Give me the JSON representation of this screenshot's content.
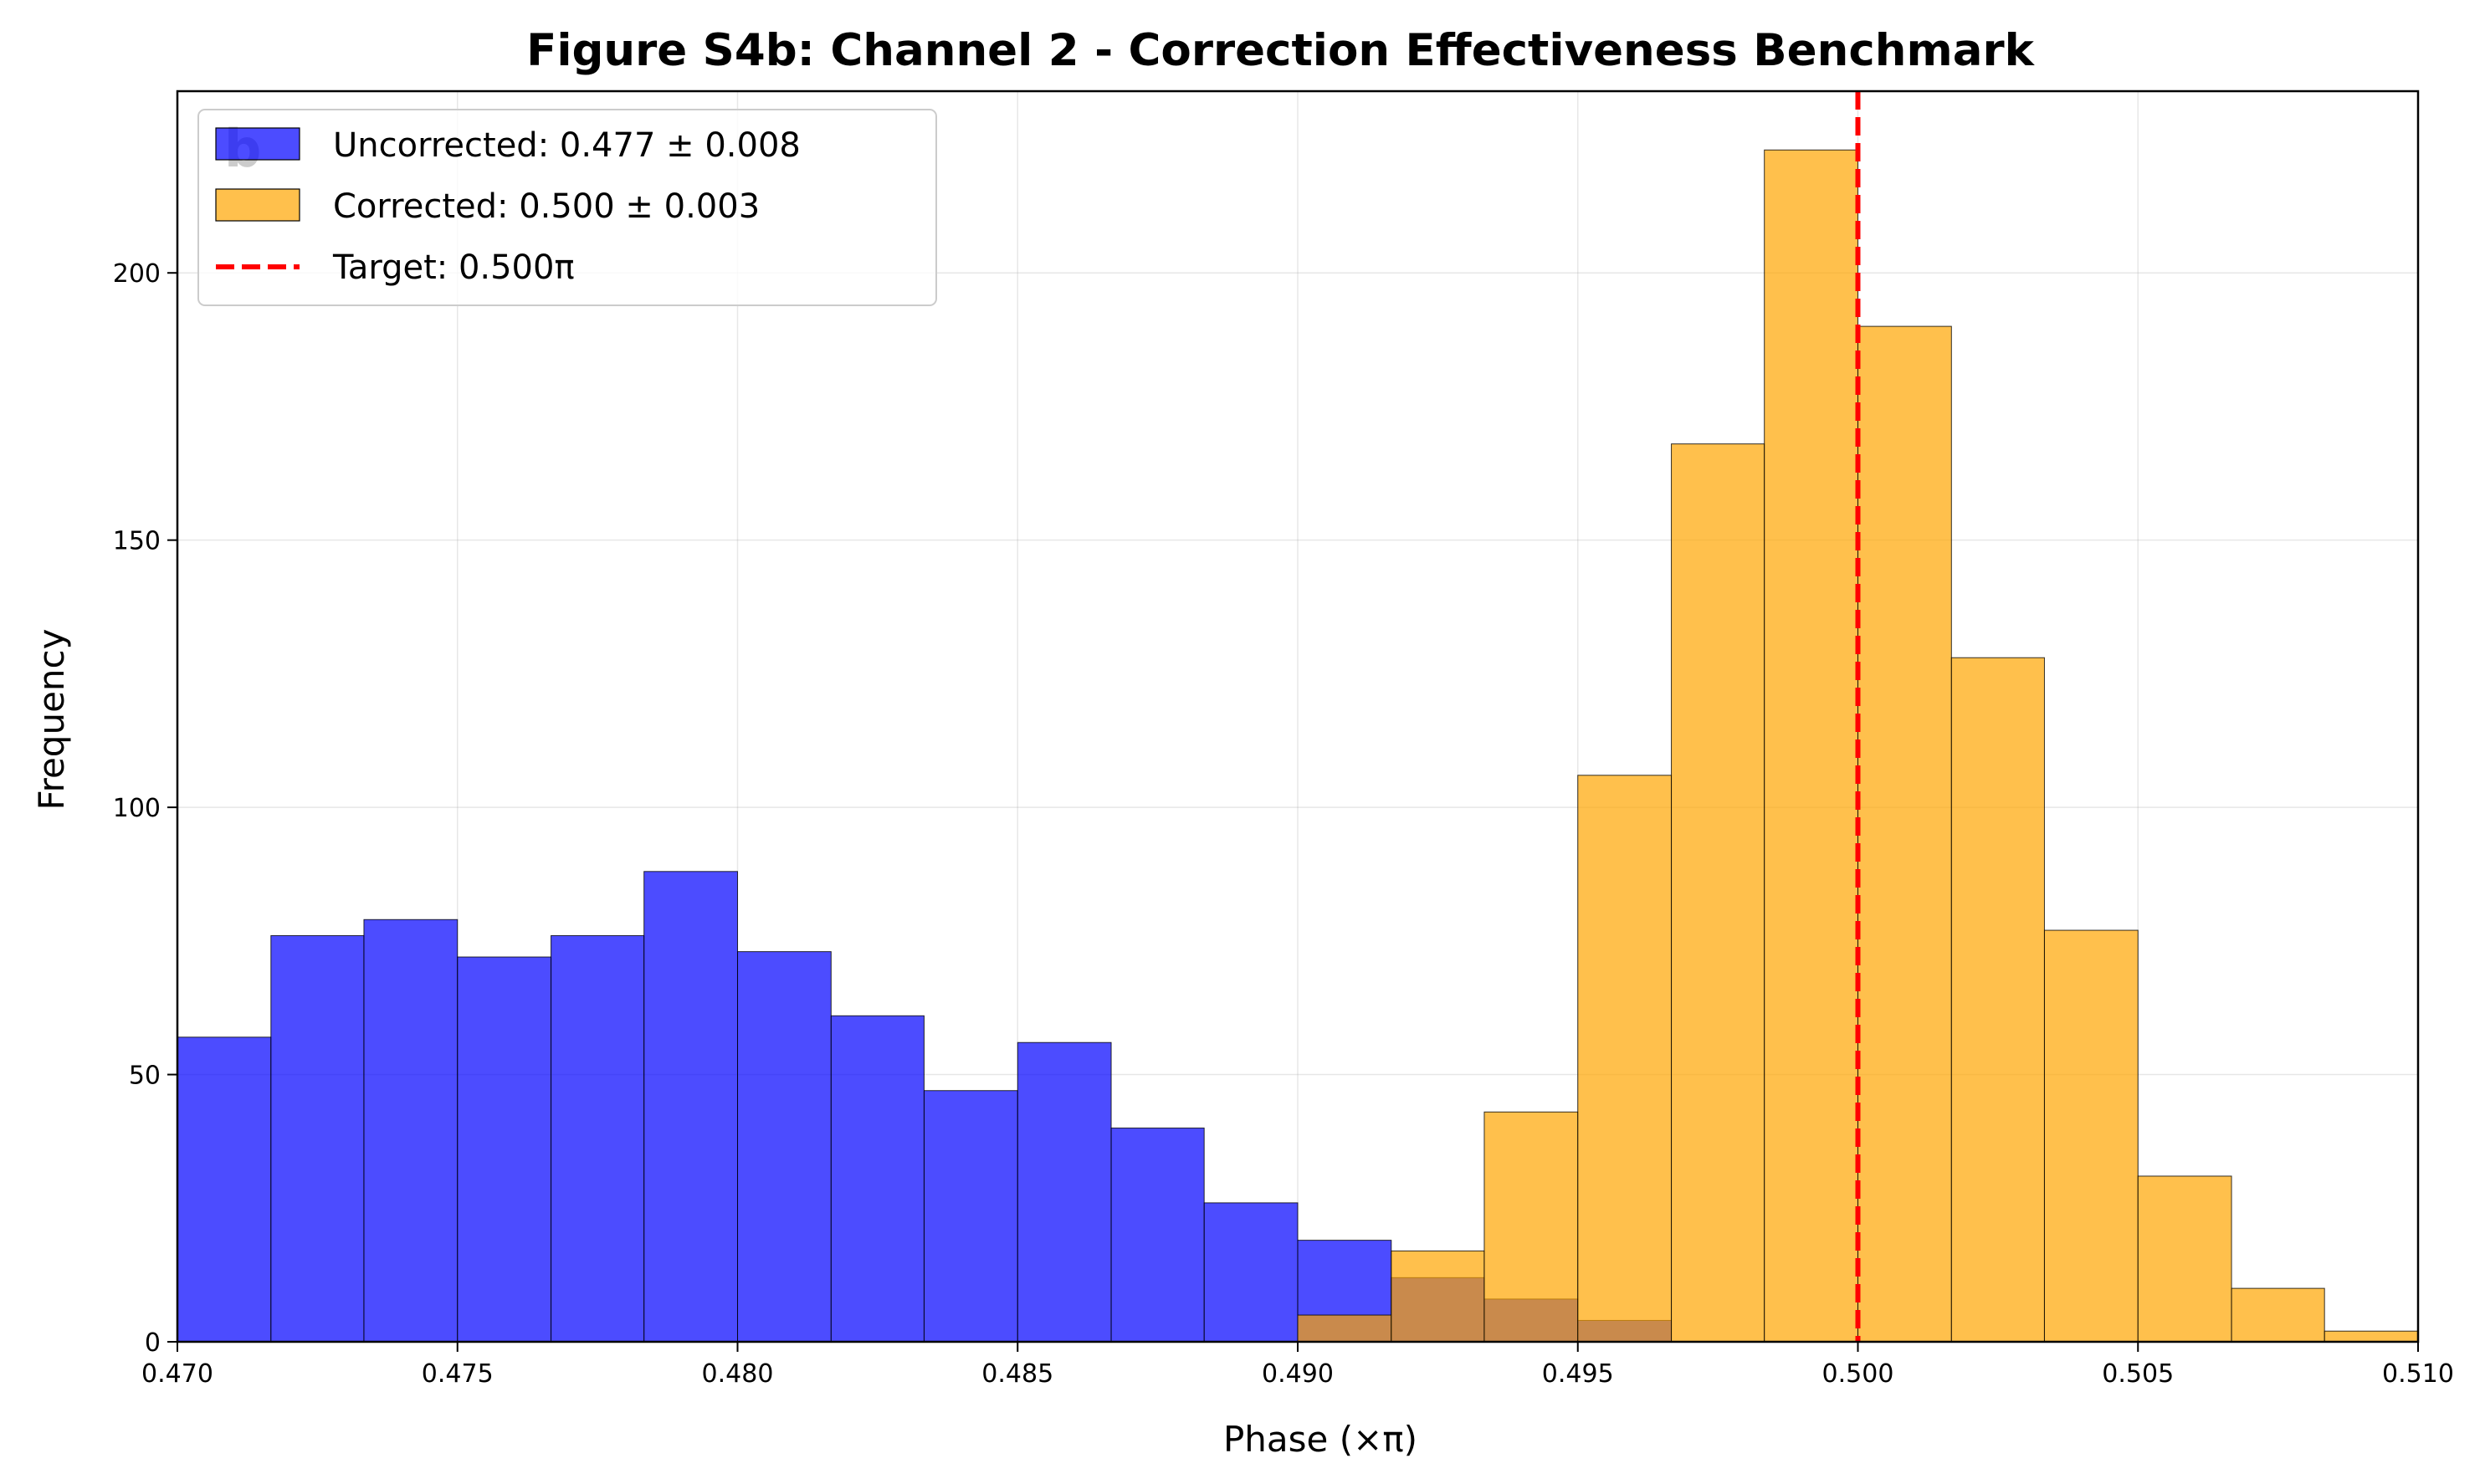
{
  "chart_data": {
    "type": "bar",
    "title": "Figure S4b: Channel 2 - Correction Effectiveness Benchmark",
    "panel_letter": "b",
    "xlabel": "Phase (×π)",
    "ylabel": "Frequency",
    "xlim": [
      0.47,
      0.51
    ],
    "ylim": [
      0,
      234
    ],
    "xticks": [
      "0.470",
      "0.475",
      "0.480",
      "0.485",
      "0.490",
      "0.495",
      "0.500",
      "0.505",
      "0.510"
    ],
    "yticks": [
      "0",
      "50",
      "100",
      "150",
      "200"
    ],
    "grid": true,
    "legend_position": "top-left",
    "series": [
      {
        "name": "Uncorrected: 0.477 ± 0.008",
        "color": "#0000ff",
        "alpha": 0.7,
        "bin_edges": [
          0.47,
          0.47167,
          0.47333,
          0.475,
          0.47667,
          0.47833,
          0.48,
          0.48167,
          0.48333,
          0.485,
          0.48667,
          0.48833,
          0.49,
          0.49167,
          0.49333,
          0.495,
          0.49667
        ],
        "counts": [
          57,
          76,
          79,
          72,
          76,
          88,
          73,
          61,
          47,
          56,
          40,
          26,
          19,
          12,
          8,
          4
        ]
      },
      {
        "name": "Corrected: 0.500 ± 0.003",
        "color": "#ffa500",
        "alpha": 0.7,
        "bin_edges": [
          0.49,
          0.49167,
          0.49333,
          0.495,
          0.49667,
          0.49833,
          0.5,
          0.50167,
          0.50333,
          0.505,
          0.50667,
          0.50833,
          0.51
        ],
        "counts": [
          5,
          17,
          43,
          106,
          168,
          223,
          190,
          128,
          77,
          31,
          10,
          2
        ]
      }
    ],
    "reference_line": {
      "name": "Target: 0.500π",
      "x": 0.5,
      "color": "#ff0000",
      "style": "dashed"
    }
  }
}
